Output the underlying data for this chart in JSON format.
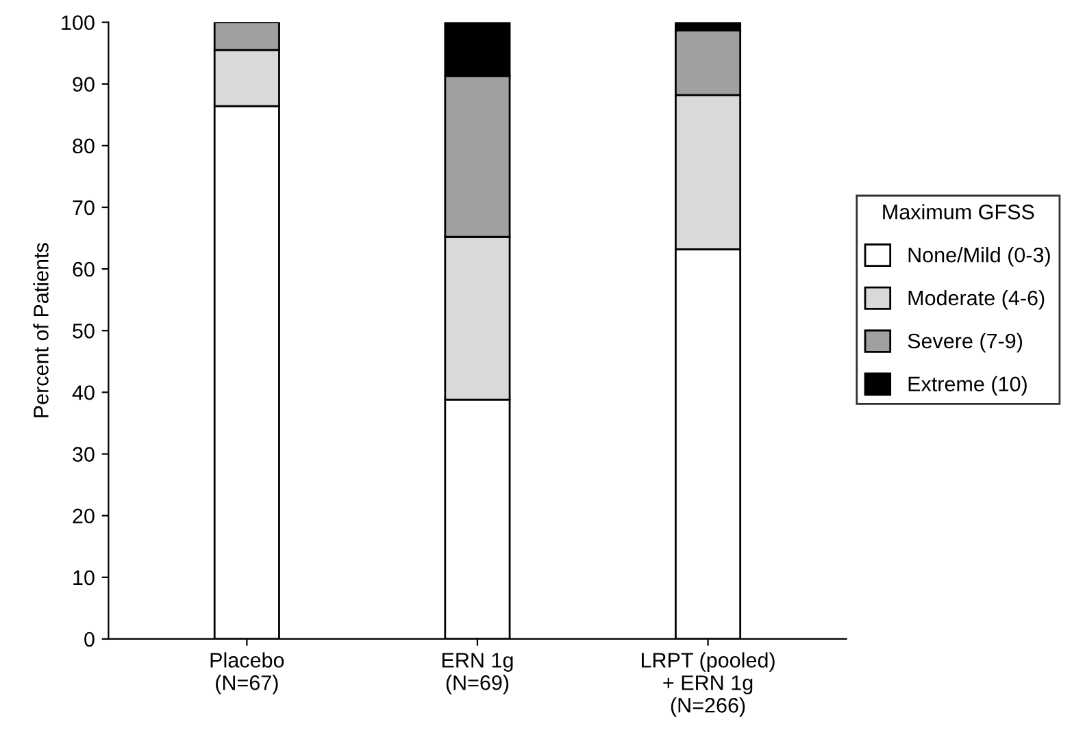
{
  "chart_data": {
    "type": "bar",
    "stacked": true,
    "ylabel": "Percent of Patients",
    "legend_title": "Maximum GFSS",
    "legend": "right",
    "categories": [
      "Placebo\n(N=67)",
      "ERN 1g\n(N=69)",
      "LRPT (pooled)\n+ ERN 1g\n(N=266)"
    ],
    "series": [
      {
        "name": "None/Mild (0-3)",
        "color": "#ffffff",
        "values": [
          86.4,
          38.8,
          63.2
        ]
      },
      {
        "name": "Moderate (4-6)",
        "color": "#d9d9d9",
        "values": [
          9.1,
          26.4,
          25.0
        ]
      },
      {
        "name": "Severe (7-9)",
        "color": "#a0a0a0",
        "values": [
          4.5,
          26.1,
          10.5
        ]
      },
      {
        "name": "Extreme (10)",
        "color": "#000000",
        "values": [
          0,
          8.7,
          1.3
        ]
      }
    ],
    "ylim": [
      0,
      100
    ],
    "yticks": [
      0,
      10,
      20,
      30,
      40,
      50,
      60,
      70,
      80,
      90,
      100
    ],
    "grid": false
  }
}
